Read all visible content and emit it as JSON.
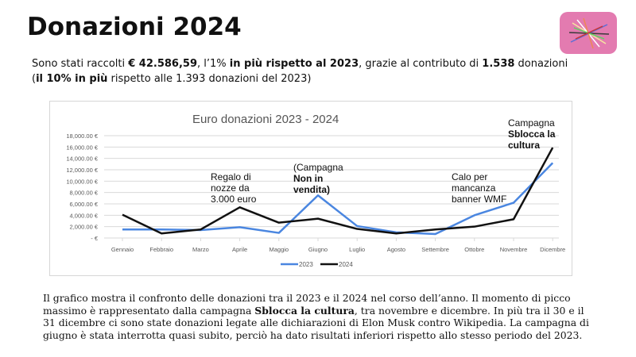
{
  "title": "Donazioni 2024",
  "intro": {
    "p1": "Sono stati raccolti ",
    "amount": "€ 42.586,59",
    "p2": ", l’1% ",
    "more": "in più rispetto al 2023",
    "p3": ", grazie al contributo di ",
    "count": "1.538",
    "p4": " donazioni (",
    "pct": "il 10% in più",
    "p5": " rispetto alle 1.393 donazioni del 2023)"
  },
  "footer": {
    "p1": "Il grafico mostra il confronto delle donazioni tra il 2023 e il 2024 nel corso dell’anno. Il momento di picco massimo è rappresentato dalla campagna ",
    "bold": "Sblocca la cultura",
    "p2": ", tra novembre e dicembre. In più tra il 30 e il 31 dicembre ci sono state donazioni legate alle dichiarazioni di Elon Musk contro Wikipedia. La campagna di giugno è stata interrotta quasi subito, perciò ha dato risultati inferiori rispetto allo stesso periodo del 2023."
  },
  "annotations": {
    "wedding": [
      "Regalo di",
      "nozze da",
      "3.000 euro"
    ],
    "june": [
      "(Campagna",
      "Non in",
      "vendita)"
    ],
    "wmf": [
      "Calo per",
      "mancanza",
      "banner WMF"
    ],
    "dec": [
      "Campagna",
      "Sblocca la",
      "cultura"
    ]
  },
  "chart_data": {
    "type": "line",
    "title": "Euro donazioni 2023 - 2024",
    "categories": [
      "Gennaio",
      "Febbraio",
      "Marzo",
      "Aprile",
      "Maggio",
      "Giugno",
      "Luglio",
      "Agosto",
      "Settembre",
      "Ottobre",
      "Novembre",
      "Dicembre"
    ],
    "ylim": [
      0,
      18000
    ],
    "yticks": [
      0,
      2000,
      4000,
      6000,
      8000,
      10000,
      12000,
      14000,
      16000,
      18000
    ],
    "ytick_labels": [
      "- €",
      "2,000.00 €",
      "4,000.00 €",
      "6,000.00 €",
      "8,000.00 €",
      "10,000.00 €",
      "12,000.00 €",
      "14,000.00 €",
      "16,000.00 €",
      "18,000.00 €"
    ],
    "grid": true,
    "legend": "bottom",
    "series": [
      {
        "name": "2023",
        "color": "#4a86e0",
        "values": [
          1500,
          1500,
          1400,
          1900,
          900,
          7500,
          2100,
          1000,
          700,
          4000,
          6200,
          13200
        ]
      },
      {
        "name": "2024",
        "color": "#111111",
        "values": [
          4100,
          800,
          1500,
          5400,
          2700,
          3400,
          1600,
          800,
          1500,
          2000,
          3300,
          15900
        ]
      }
    ]
  }
}
